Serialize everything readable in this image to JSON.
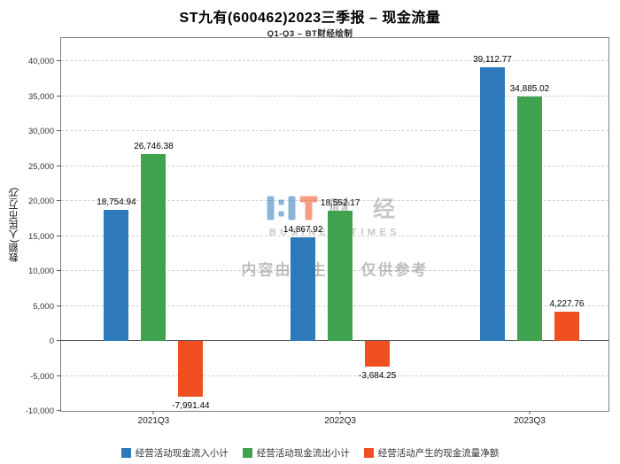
{
  "title": "ST九有(600462)2023三季报 – 现金流量",
  "subtitle": "Q1-Q3 – BT财经绘制",
  "watermark": {
    "logo_cn": "财 经",
    "brand": "BUSINESSTIMES",
    "disclaimer": "内容由AI生成，仅供参考"
  },
  "chart_data": {
    "type": "bar",
    "categories": [
      "2021Q3",
      "2022Q3",
      "2023Q3"
    ],
    "series": [
      {
        "name": "经营活动现金流入小计",
        "color": "#2e79b9",
        "values": [
          18754.94,
          14867.92,
          39112.77
        ]
      },
      {
        "name": "经营活动现金流出小计",
        "color": "#3fa24e",
        "values": [
          26746.38,
          18552.17,
          34885.02
        ]
      },
      {
        "name": "经营活动产生的现金流量净额",
        "color": "#f04f21",
        "values": [
          -7991.44,
          -3684.25,
          4227.76
        ]
      }
    ],
    "title": "ST九有(600462)2023三季报 – 现金流量",
    "xlabel": "",
    "ylabel": "数额(人民币万元)",
    "ylim": [
      -10000,
      40000
    ],
    "ytick_step": 5000,
    "grid": true,
    "legend_position": "bottom"
  }
}
